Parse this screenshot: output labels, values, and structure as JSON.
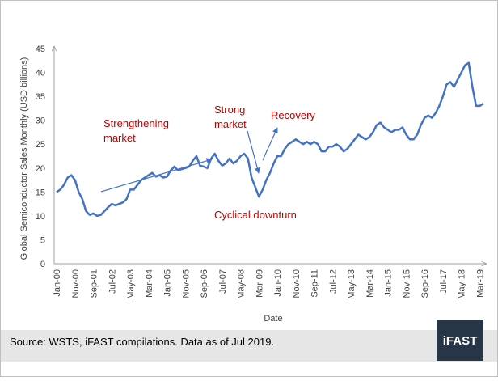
{
  "chart_data": {
    "type": "line",
    "ylabel": "Global Semiconductor Sales Monthly (USD billions)",
    "xlabel": "Date",
    "categories": [
      "Jan-00",
      null,
      null,
      null,
      null,
      "Nov-00",
      null,
      null,
      null,
      null,
      "Sep-01",
      null,
      null,
      null,
      null,
      "Jul-02",
      null,
      null,
      null,
      null,
      "May-03",
      null,
      null,
      null,
      null,
      "Mar-04",
      null,
      null,
      null,
      null,
      "Jan-05",
      null,
      null,
      null,
      null,
      "Nov-05",
      null,
      null,
      null,
      null,
      "Sep-06",
      null,
      null,
      null,
      null,
      "Jul-07",
      null,
      null,
      null,
      null,
      "May-08",
      null,
      null,
      null,
      null,
      "Mar-09",
      null,
      null,
      null,
      null,
      "Jan-10",
      null,
      null,
      null,
      null,
      "Nov-10",
      null,
      null,
      null,
      null,
      "Sep-11",
      null,
      null,
      null,
      null,
      "Jul-12",
      null,
      null,
      null,
      null,
      "May-13",
      null,
      null,
      null,
      null,
      "Mar-14",
      null,
      null,
      null,
      null,
      "Jan-15",
      null,
      null,
      null,
      null,
      "Nov-15",
      null,
      null,
      null,
      null,
      "Sep-16",
      null,
      null,
      null,
      null,
      "Jul-17",
      null,
      null,
      null,
      null,
      "May-18",
      null,
      null,
      null,
      null,
      "Mar-19",
      null
    ],
    "values": [
      15,
      15.5,
      16.5,
      18,
      18.5,
      17.5,
      15,
      13.5,
      11,
      10.2,
      10.5,
      10,
      10.2,
      11,
      11.8,
      12.5,
      12.2,
      12.5,
      12.8,
      13.5,
      15.5,
      15.5,
      16.5,
      17.5,
      18,
      18.5,
      19,
      18.2,
      18.5,
      18,
      18.2,
      19.5,
      20.3,
      19.5,
      19.8,
      20,
      20.3,
      21.5,
      22.5,
      20.5,
      20.3,
      20,
      22,
      23,
      21.5,
      20.5,
      21,
      22,
      21,
      21.5,
      22.5,
      23,
      22,
      18,
      16,
      14,
      15.5,
      17.5,
      19,
      21,
      22.5,
      22.5,
      24,
      25,
      25.5,
      26,
      25.5,
      25,
      25.5,
      25,
      25.5,
      25,
      23.5,
      23.5,
      24.5,
      24.5,
      25,
      24.5,
      23.5,
      24,
      25,
      26,
      27,
      26.5,
      26,
      26.5,
      27.5,
      29,
      29.5,
      28.5,
      28,
      27.5,
      28,
      28,
      28.5,
      27,
      26,
      26,
      27,
      29,
      30.5,
      31,
      30.5,
      31.5,
      33,
      35,
      37.5,
      38,
      37,
      38.5,
      40,
      41.5,
      42,
      37,
      33,
      33,
      33.5
    ],
    "color": "#4472c4",
    "ylim": [
      0,
      45
    ],
    "yticks": [
      0,
      5,
      10,
      15,
      20,
      25,
      30,
      35,
      40,
      45
    ],
    "annotations": [
      {
        "lines": [
          "Strengthening",
          "market"
        ]
      },
      {
        "lines": [
          "Strong",
          "market"
        ]
      },
      {
        "lines": [
          "Recovery"
        ]
      },
      {
        "lines": [
          "Cyclical downturn"
        ]
      }
    ],
    "source": "Source: WSTS, iFAST compilations. Data as of Jul 2019.",
    "logo": "iFAST"
  }
}
